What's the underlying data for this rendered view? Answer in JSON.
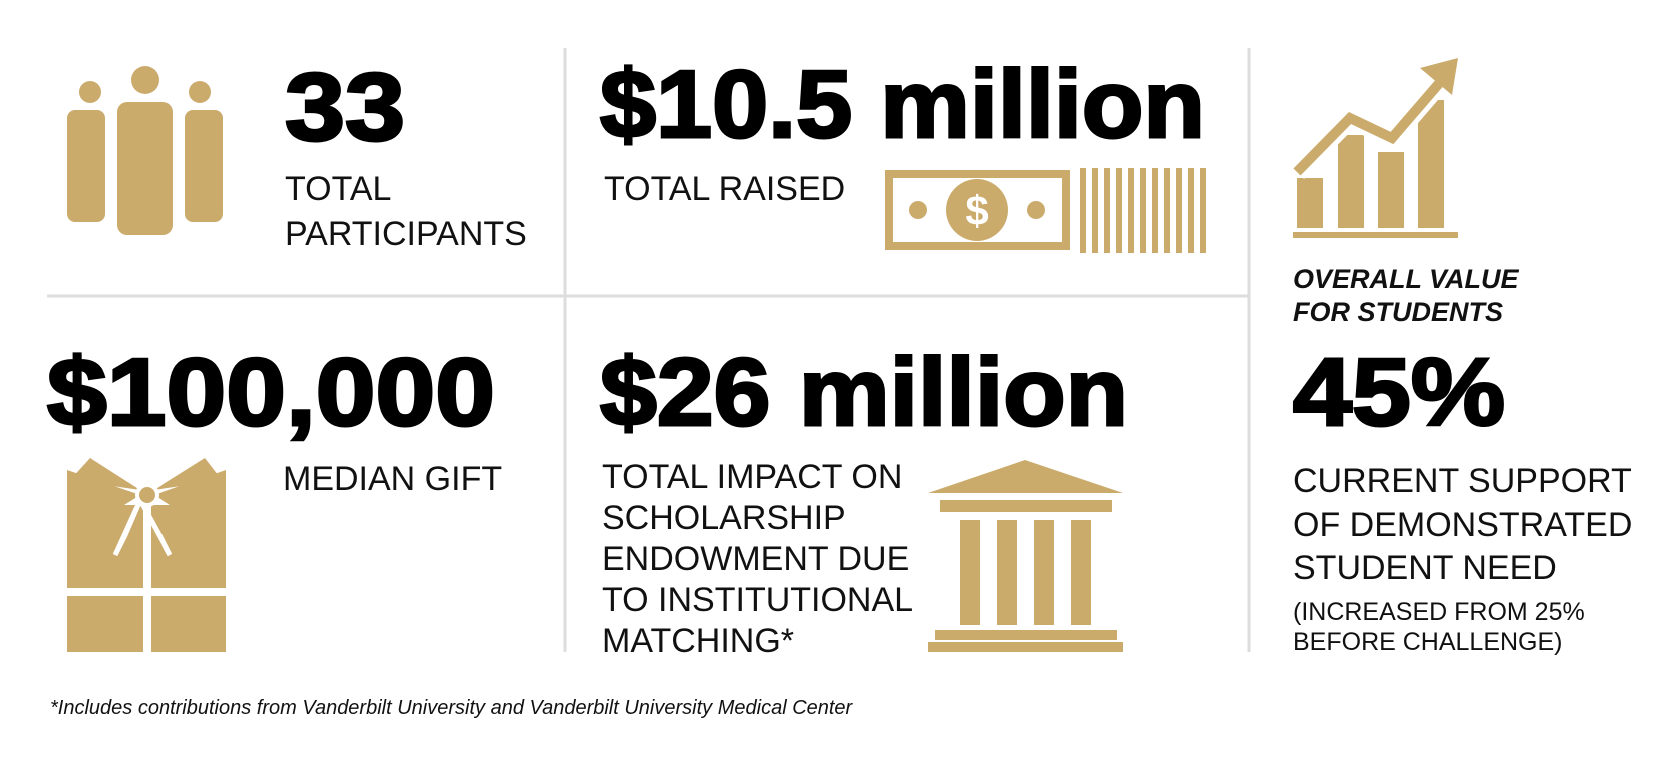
{
  "participants": {
    "value": "33",
    "label": [
      "TOTAL",
      "PARTICIPANTS"
    ]
  },
  "raised": {
    "value": "$10.5 million",
    "label": [
      "TOTAL RAISED"
    ]
  },
  "overall": {
    "heading": [
      "OVERALL VALUE",
      "FOR STUDENTS"
    ],
    "value": "45%",
    "label": [
      "CURRENT SUPPORT",
      "OF DEMONSTRATED",
      "STUDENT NEED"
    ],
    "note": [
      "(INCREASED FROM 25%",
      "BEFORE CHALLENGE)"
    ]
  },
  "median_gift": {
    "value": "$100,000",
    "label": [
      "MEDIAN GIFT"
    ]
  },
  "impact": {
    "value": "$26 million",
    "label": [
      "TOTAL IMPACT ON",
      "SCHOLARSHIP",
      "ENDOWMENT DUE",
      "TO INSTITUTIONAL",
      "MATCHING*"
    ]
  },
  "footnote": "*Includes contributions from Vanderbilt University and Vanderbilt University Medical Center"
}
